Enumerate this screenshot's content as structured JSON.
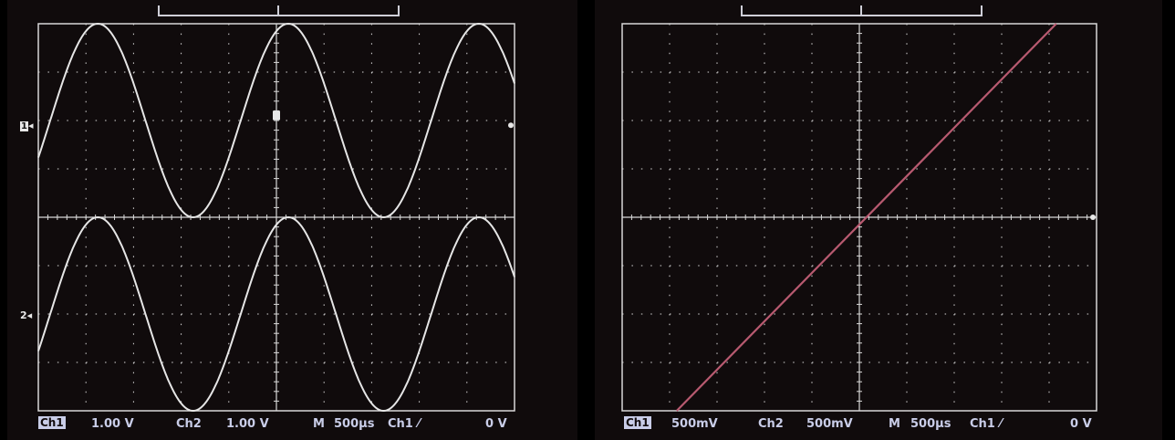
{
  "colors": {
    "screen_bg": "#100b0c",
    "grid": "#d8d8d8",
    "trace": "#e6e6e6",
    "xy_trace": "#b85a70",
    "readout": "#c9cde8"
  },
  "left_scope": {
    "markers": {
      "ch1": "1",
      "ch2": "2"
    },
    "readout": {
      "ch1_label": "Ch1",
      "ch1_scale": "1.00 V",
      "ch2_label": "Ch2",
      "ch2_scale": "1.00 V",
      "timebase_label": "M",
      "timebase": "500µs",
      "trigger_label": "Ch1",
      "trigger_slope": "⁄",
      "trigger_level": "0 V"
    }
  },
  "right_scope": {
    "readout": {
      "ch1_label": "Ch1",
      "ch1_scale": "500mV",
      "ch2_label": "Ch2",
      "ch2_scale": "500mV",
      "timebase_label": "M",
      "timebase": "500µs",
      "trigger_label": "Ch1",
      "trigger_slope": "⁄",
      "trigger_level": "0 V"
    }
  },
  "chart_data": [
    {
      "type": "line",
      "mode": "YT",
      "grid": true,
      "divisions": {
        "x": 10,
        "y": 8
      },
      "series": [
        {
          "name": "Ch1",
          "waveform": "sine",
          "amplitude_div": 2,
          "period_div": 4,
          "phase_div": 1.25,
          "center_div": 2
        },
        {
          "name": "Ch2",
          "waveform": "sine",
          "amplitude_div": 2,
          "period_div": 4,
          "phase_div": 1.25,
          "center_div": -2
        }
      ]
    },
    {
      "type": "line",
      "mode": "XY",
      "grid": true,
      "divisions": {
        "x": 10,
        "y": 8
      },
      "series": [
        {
          "name": "Ch1 vs Ch2",
          "x": [
            -3.85,
            4.15
          ],
          "y": [
            -4.0,
            4.0
          ]
        }
      ]
    }
  ]
}
